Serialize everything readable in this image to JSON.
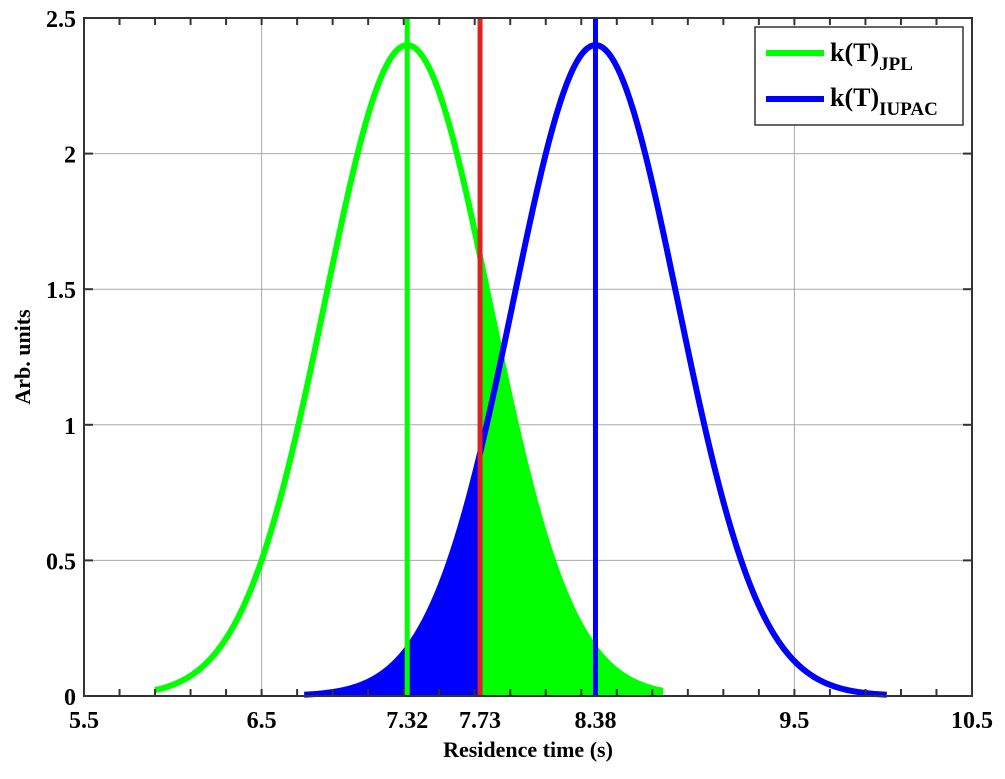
{
  "chart_data": {
    "type": "line",
    "title": "",
    "xlabel": "Residence time (s)",
    "ylabel": "Arb. units",
    "xlim": [
      5.5,
      10.5
    ],
    "ylim": [
      0,
      2.5
    ],
    "xticks": [
      5.5,
      6.5,
      7.32,
      7.73,
      8.38,
      9.5,
      10.5
    ],
    "xtick_labels": [
      "5.5",
      "6.5",
      "7.32",
      "7.73",
      "8.38",
      "9.5",
      "10.5"
    ],
    "yticks": [
      0,
      0.5,
      1,
      1.5,
      2,
      2.5
    ],
    "ytick_labels": [
      "0",
      "0.5",
      "1",
      "1.5",
      "2",
      "2.5"
    ],
    "grid": true,
    "legend_position": "top-right",
    "series": [
      {
        "name": "k(T)",
        "sub": "JPL",
        "color": "#00ff00",
        "type": "gaussian",
        "mean": 7.32,
        "sigma": 0.463,
        "peak": 2.4,
        "x_range": [
          5.9,
          8.76
        ],
        "fill_range": [
          7.73,
          8.76
        ]
      },
      {
        "name": "k(T)",
        "sub": "IUPAC",
        "color": "#0000ff",
        "type": "gaussian",
        "mean": 8.38,
        "sigma": 0.463,
        "peak": 2.4,
        "x_range": [
          6.74,
          10.02
        ],
        "fill_range": [
          6.74,
          7.73
        ]
      }
    ],
    "vertical_lines": [
      {
        "x": 7.32,
        "color": "#00ff00"
      },
      {
        "x": 7.73,
        "color": "#dd2222"
      },
      {
        "x": 8.38,
        "color": "#0000ff"
      }
    ]
  }
}
